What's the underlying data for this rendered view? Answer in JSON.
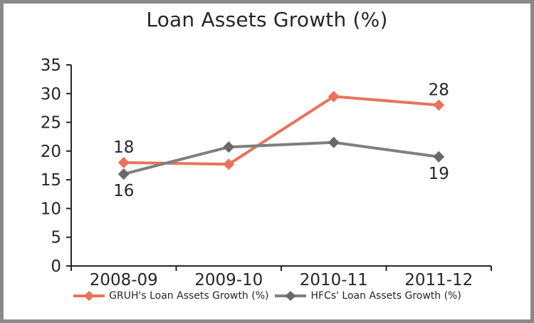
{
  "frame": {
    "border_color": "#8a8a8a",
    "background": "#ffffff"
  },
  "title": "Loan Assets Growth (%)",
  "chart_data": {
    "type": "line",
    "title": "Loan Assets Growth (%)",
    "categories": [
      "2008-09",
      "2009-10",
      "2010-11",
      "2011-12"
    ],
    "series": [
      {
        "name": "GRUH's Loan Assets Growth (%)",
        "color": "#E8735A",
        "marker": "diamond",
        "values": [
          18,
          17.7,
          29.5,
          28
        ],
        "data_labels": [
          {
            "index": 0,
            "text": "18",
            "position": "above"
          },
          {
            "index": 3,
            "text": "28",
            "position": "above"
          }
        ]
      },
      {
        "name": "HFCs' Loan Assets Growth (%)",
        "color": "#7F7F7F",
        "marker_color": "#696969",
        "marker": "diamond",
        "values": [
          16,
          20.7,
          21.5,
          19
        ],
        "data_labels": [
          {
            "index": 0,
            "text": "16",
            "position": "below"
          },
          {
            "index": 3,
            "text": "19",
            "position": "below"
          }
        ]
      }
    ],
    "ylim": [
      0,
      35
    ],
    "y_ticks": [
      0,
      5,
      10,
      15,
      20,
      25,
      30,
      35
    ],
    "grid": false,
    "legend_position": "bottom",
    "axis_color": "#262626",
    "text_color": "#262626"
  }
}
